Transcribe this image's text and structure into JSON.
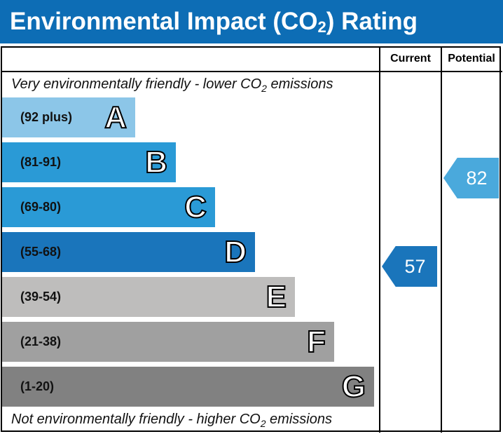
{
  "title": {
    "main": "Environmental Impact (CO",
    "sub": "2",
    "end": ") Rating"
  },
  "columns": {
    "current": "Current",
    "potential": "Potential"
  },
  "notes": {
    "top": {
      "text": "Very environmentally friendly - lower CO",
      "sub": "2",
      "end": " emissions"
    },
    "bottom": {
      "text": "Not environmentally friendly - higher CO",
      "sub": "2",
      "end": " emissions"
    }
  },
  "chart_data": {
    "type": "bar",
    "bands": [
      {
        "letter": "A",
        "range": "(92 plus)",
        "color": "#8cc6e8"
      },
      {
        "letter": "B",
        "range": "(81-91)",
        "color": "#2a9ad6"
      },
      {
        "letter": "C",
        "range": "(69-80)",
        "color": "#2a9ad6"
      },
      {
        "letter": "D",
        "range": "(55-68)",
        "color": "#1a75bb"
      },
      {
        "letter": "E",
        "range": "(39-54)",
        "color": "#bebdbc"
      },
      {
        "letter": "F",
        "range": "(21-38)",
        "color": "#a0a0a0"
      },
      {
        "letter": "G",
        "range": "(1-20)",
        "color": "#818181"
      }
    ],
    "current": {
      "value": "57",
      "band": "D",
      "color": "#1a75bb"
    },
    "potential": {
      "value": "82",
      "band": "B",
      "color": "#4aa9dc"
    }
  }
}
